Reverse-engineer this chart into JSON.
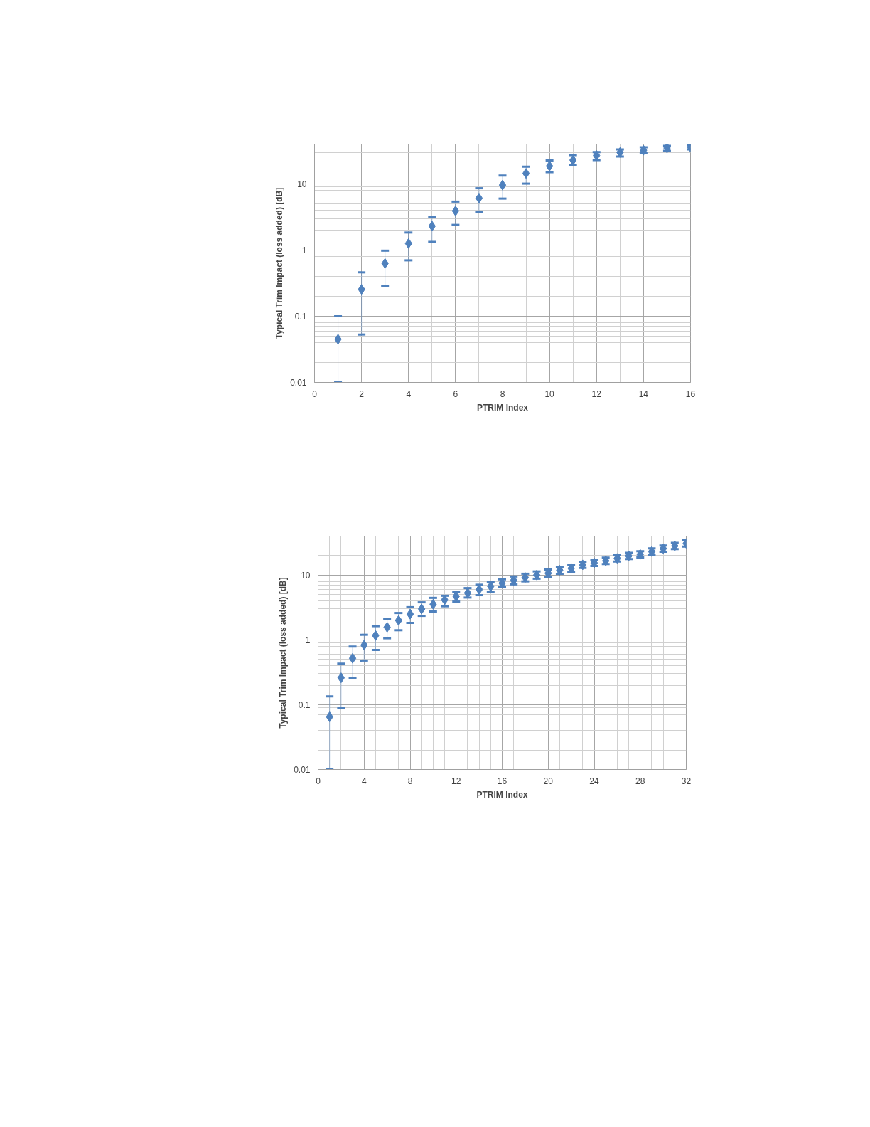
{
  "chart_data": [
    {
      "type": "scatter",
      "xlabel": "PTRIM Index",
      "ylabel": "Typical Trim Impact (loss added) [dB]",
      "log": "y",
      "grid": true,
      "marker": "diamond",
      "x": [
        1,
        2,
        3,
        4,
        5,
        6,
        7,
        8,
        9,
        10,
        11,
        12,
        13,
        14,
        15,
        16
      ],
      "xlim": [
        0,
        16
      ],
      "xticks": [
        0,
        2,
        4,
        6,
        8,
        10,
        12,
        14,
        16
      ],
      "ylim": [
        0.01,
        40
      ],
      "yticks": [
        0.01,
        0.1,
        1,
        10
      ],
      "series": [
        {
          "color": "#4f81bd",
          "values": [
            0.045,
            0.255,
            0.63,
            1.26,
            2.3,
            3.9,
            6.1,
            9.6,
            14.4,
            18.6,
            22.9,
            26.9,
            29.9,
            32.3,
            34.9,
            36
          ],
          "errors": [
            [
              0.01,
              0.1
            ],
            [
              0.053,
              0.46
            ],
            [
              0.29,
              0.98
            ],
            [
              0.7,
              1.84
            ],
            [
              1.33,
              3.2
            ],
            [
              2.4,
              5.4
            ],
            [
              3.8,
              8.6
            ],
            [
              6.0,
              13.4
            ],
            [
              10.1,
              18.2
            ],
            [
              15,
              22.7
            ],
            [
              19,
              27.3
            ],
            [
              22.9,
              30.3
            ],
            [
              25.9,
              33.3
            ],
            [
              29.2,
              35.7
            ],
            [
              31.7,
              37.6
            ],
            [
              33.3,
              38.9
            ]
          ]
        }
      ]
    },
    {
      "type": "scatter",
      "xlabel": "PTRIM Index",
      "ylabel": "Typical Trim Impact (loss added) [dB]",
      "log": "y",
      "grid": true,
      "marker": "diamond",
      "x": [
        1,
        2,
        3,
        4,
        5,
        6,
        7,
        8,
        9,
        10,
        11,
        12,
        13,
        14,
        15,
        16,
        17,
        18,
        19,
        20,
        21,
        22,
        23,
        24,
        25,
        26,
        27,
        28,
        29,
        30,
        31,
        32
      ],
      "xlim": [
        0,
        32
      ],
      "xticks": [
        0,
        4,
        8,
        12,
        16,
        20,
        24,
        28,
        32
      ],
      "ylim": [
        0.01,
        40
      ],
      "yticks": [
        0.01,
        0.1,
        1,
        10
      ],
      "series": [
        {
          "color": "#4f81bd",
          "values": [
            0.065,
            0.26,
            0.52,
            0.83,
            1.17,
            1.57,
            2.0,
            2.5,
            3.0,
            3.55,
            4.15,
            4.7,
            5.3,
            6.0,
            6.7,
            7.5,
            8.3,
            9.2,
            10.0,
            10.7,
            11.9,
            12.7,
            14.4,
            15.4,
            16.6,
            18.1,
            19.8,
            20.9,
            23.1,
            25.7,
            28.2,
            30.8
          ],
          "errors": [
            [
              0.01,
              0.134
            ],
            [
              0.09,
              0.43
            ],
            [
              0.26,
              0.79
            ],
            [
              0.48,
              1.2
            ],
            [
              0.7,
              1.63
            ],
            [
              1.06,
              2.08
            ],
            [
              1.41,
              2.6
            ],
            [
              1.83,
              3.2
            ],
            [
              2.35,
              3.8
            ],
            [
              2.74,
              4.45
            ],
            [
              3.3,
              4.8
            ],
            [
              3.9,
              5.5
            ],
            [
              4.5,
              6.3
            ],
            [
              4.9,
              7.1
            ],
            [
              5.5,
              7.9
            ],
            [
              6.5,
              8.6
            ],
            [
              7.2,
              9.5
            ],
            [
              8.0,
              10.5
            ],
            [
              8.8,
              11.4
            ],
            [
              9.4,
              12.2
            ],
            [
              10.5,
              13.5
            ],
            [
              11.2,
              14.4
            ],
            [
              12.9,
              16.1
            ],
            [
              13.8,
              17.2
            ],
            [
              14.8,
              18.6
            ],
            [
              16.2,
              20.2
            ],
            [
              17.7,
              22.1
            ],
            [
              18.7,
              23.3
            ],
            [
              20.6,
              25.8
            ],
            [
              23.0,
              28.7
            ],
            [
              25.2,
              31.5
            ],
            [
              27.5,
              34.4
            ]
          ]
        }
      ]
    }
  ]
}
